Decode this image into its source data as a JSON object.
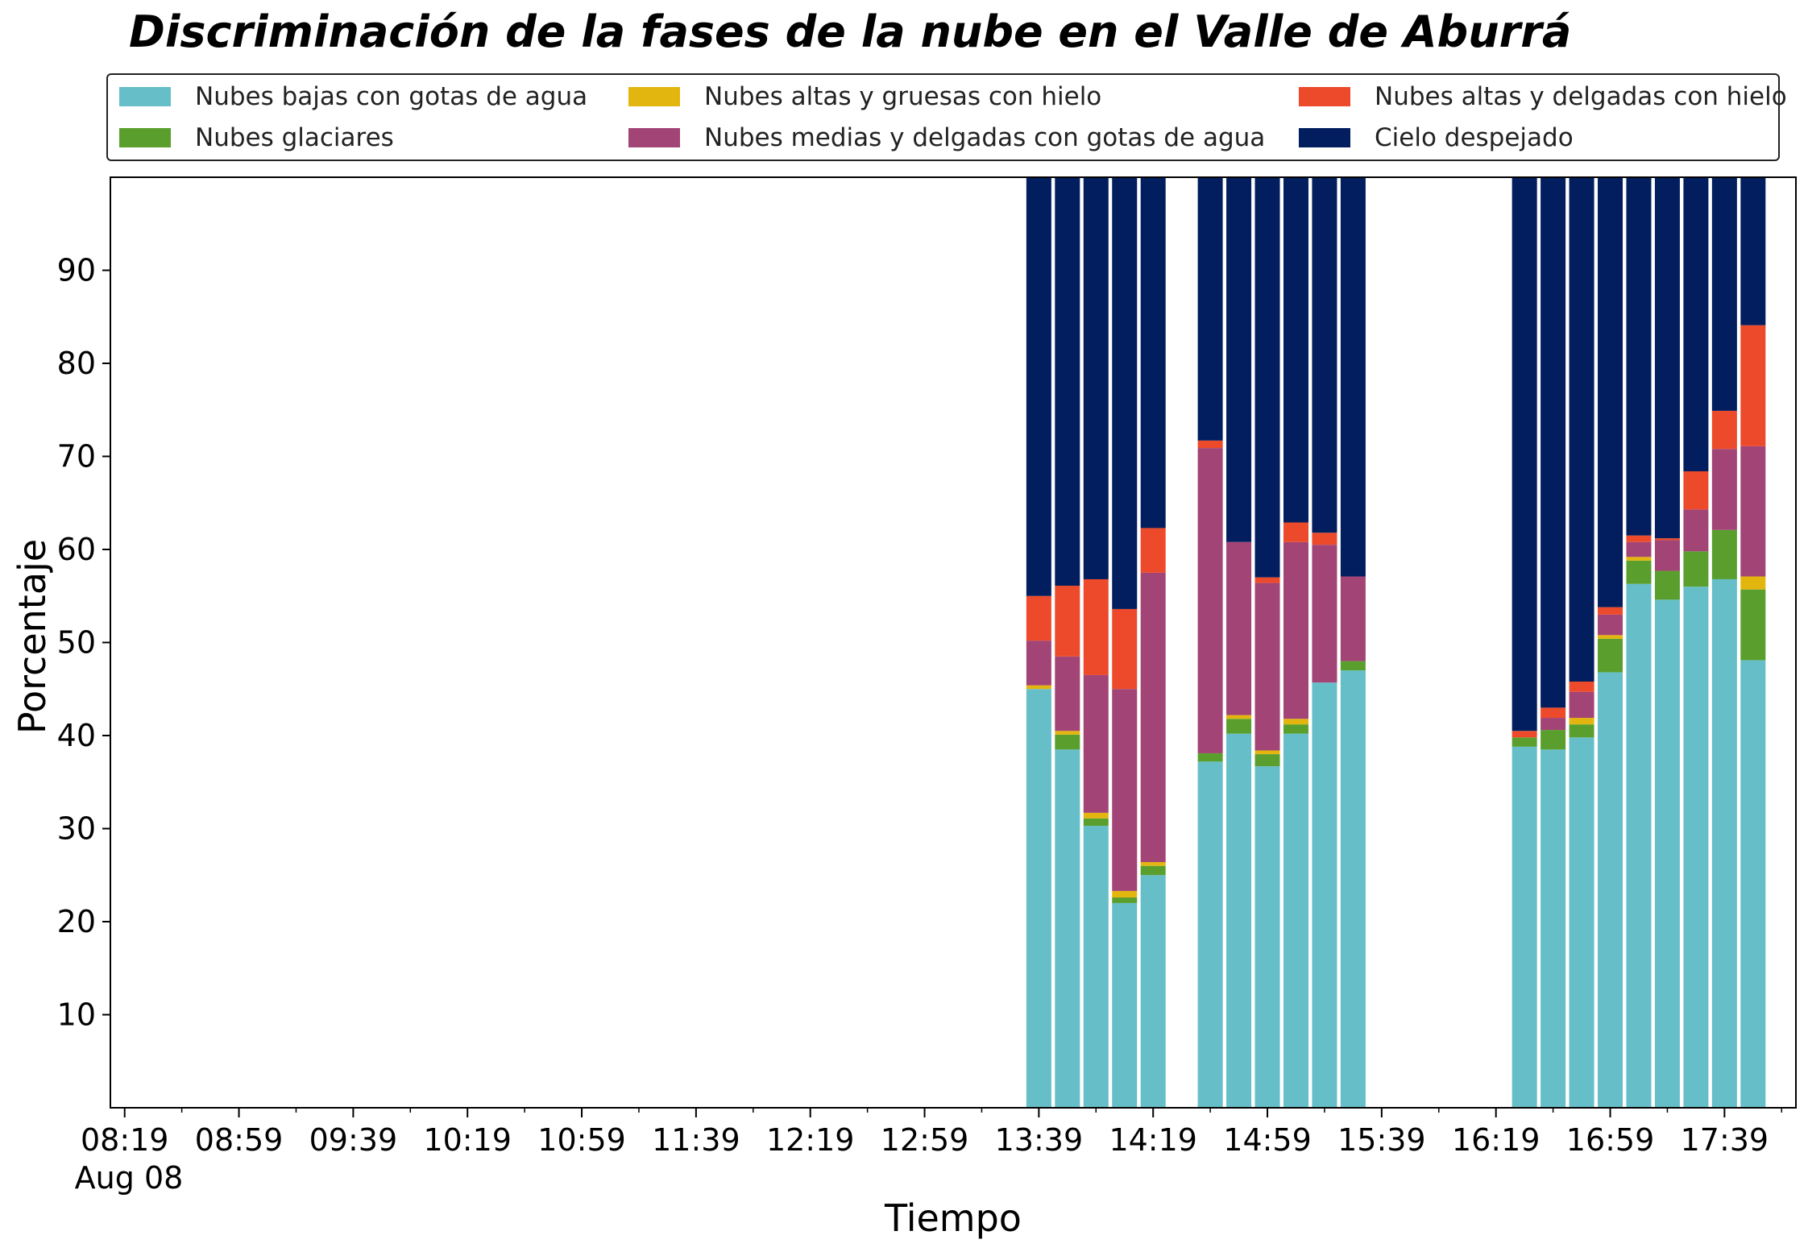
{
  "chart_data": {
    "type": "bar",
    "stacked": true,
    "title": "Discriminación de la fases de la nube en el Valle de Aburrá",
    "xlabel": "Tiempo",
    "ylabel": "Porcentaje",
    "ylim": [
      0,
      100
    ],
    "yticks": [
      10,
      20,
      30,
      40,
      50,
      60,
      70,
      80,
      90
    ],
    "xlim": [
      "08:14",
      "18:04"
    ],
    "xtick_labels": [
      "08:19",
      "08:59",
      "09:39",
      "10:19",
      "10:59",
      "11:39",
      "12:19",
      "12:59",
      "13:39",
      "14:19",
      "14:59",
      "15:39",
      "16:19",
      "16:59",
      "17:39"
    ],
    "xtick_sublabel": "Aug 08",
    "grid": false,
    "legend_position": "top",
    "x": [
      "13:39",
      "13:49",
      "13:59",
      "14:09",
      "14:19",
      "14:39",
      "14:49",
      "14:59",
      "15:09",
      "15:19",
      "15:29",
      "16:29",
      "16:39",
      "16:49",
      "16:59",
      "17:09",
      "17:19",
      "17:29",
      "17:39",
      "17:49"
    ],
    "series": [
      {
        "name": "Nubes bajas con gotas de agua",
        "color": "#66bec9",
        "values": [
          45.0,
          38.5,
          30.3,
          22.0,
          25.0,
          37.2,
          40.2,
          36.7,
          40.2,
          45.7,
          47.0,
          38.8,
          38.5,
          39.8,
          46.8,
          56.3,
          54.6,
          56.0,
          56.8,
          48.1
        ]
      },
      {
        "name": "Nubes glaciares",
        "color": "#5a9f2e",
        "values": [
          0.0,
          1.6,
          0.8,
          0.6,
          1.0,
          0.9,
          1.6,
          1.3,
          1.0,
          0.0,
          1.0,
          1.0,
          2.1,
          1.4,
          3.6,
          2.5,
          3.1,
          3.8,
          5.3,
          7.6
        ]
      },
      {
        "name": "Nubes altas y gruesas con hielo",
        "color": "#e3b50f",
        "values": [
          0.4,
          0.4,
          0.6,
          0.7,
          0.4,
          0.0,
          0.4,
          0.4,
          0.6,
          0.0,
          0.0,
          0.0,
          0.0,
          0.7,
          0.4,
          0.4,
          0.0,
          0.0,
          0.0,
          1.4
        ]
      },
      {
        "name": "Nubes medias y delgadas con gotas de agua",
        "color": "#a24475",
        "values": [
          4.8,
          8.0,
          14.8,
          21.7,
          31.1,
          32.8,
          18.6,
          18.0,
          19.0,
          14.8,
          9.1,
          0.0,
          1.3,
          2.8,
          2.2,
          1.6,
          3.3,
          4.5,
          8.7,
          14.0
        ]
      },
      {
        "name": "Nubes altas y delgadas con hielo",
        "color": "#ec4a2a",
        "values": [
          4.8,
          7.6,
          10.3,
          8.6,
          4.8,
          0.8,
          0.0,
          0.6,
          2.1,
          1.3,
          0.0,
          0.7,
          1.1,
          1.1,
          0.8,
          0.7,
          0.2,
          4.1,
          4.1,
          13.0
        ]
      },
      {
        "name": "Cielo despejado",
        "color": "#021e5e",
        "values": [
          45.0,
          43.9,
          43.2,
          46.4,
          37.7,
          28.3,
          39.2,
          43.0,
          37.1,
          38.2,
          42.9,
          59.5,
          57.0,
          54.2,
          46.2,
          38.5,
          38.8,
          31.6,
          25.1,
          15.9
        ]
      }
    ]
  }
}
